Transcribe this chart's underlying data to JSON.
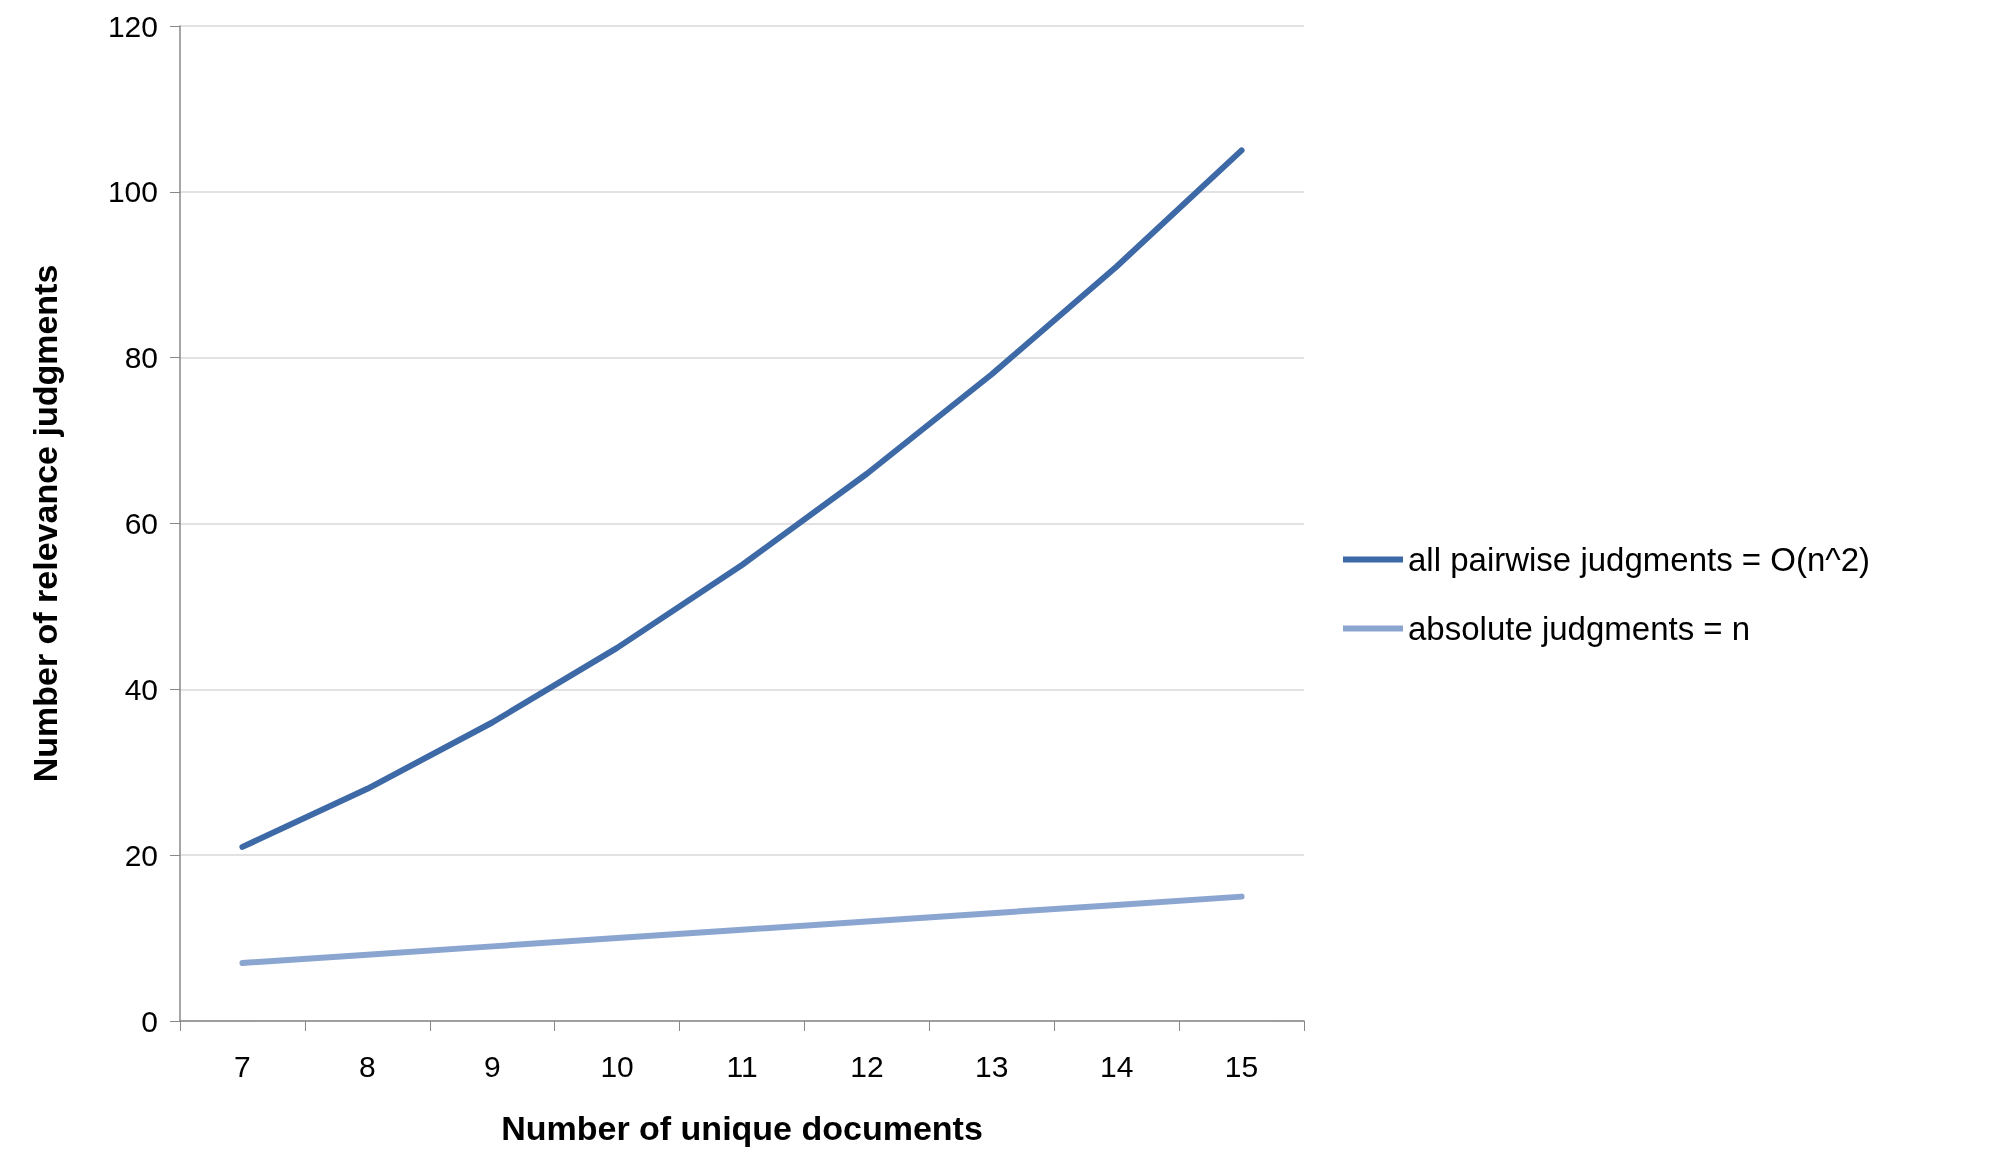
{
  "chart_data": {
    "type": "line",
    "xlabel": "Number of unique documents",
    "ylabel": "Number of relevance judgments",
    "categories": [
      "7",
      "8",
      "9",
      "10",
      "11",
      "12",
      "13",
      "14",
      "15"
    ],
    "series": [
      {
        "name": "all pairwise judgments = O(n^2)",
        "color": "#3d69a6",
        "values": [
          21,
          28,
          36,
          45,
          55,
          66,
          78,
          91,
          105
        ]
      },
      {
        "name": "absolute judgments = n",
        "color": "#8ba5d1",
        "values": [
          7,
          8,
          9,
          10,
          11,
          12,
          13,
          14,
          15
        ]
      }
    ],
    "ylim": [
      0,
      120
    ],
    "yticks": [
      0,
      20,
      40,
      60,
      80,
      100,
      120
    ],
    "grid": "y",
    "legend": "right",
    "marker": "none",
    "line_style": "solid"
  }
}
